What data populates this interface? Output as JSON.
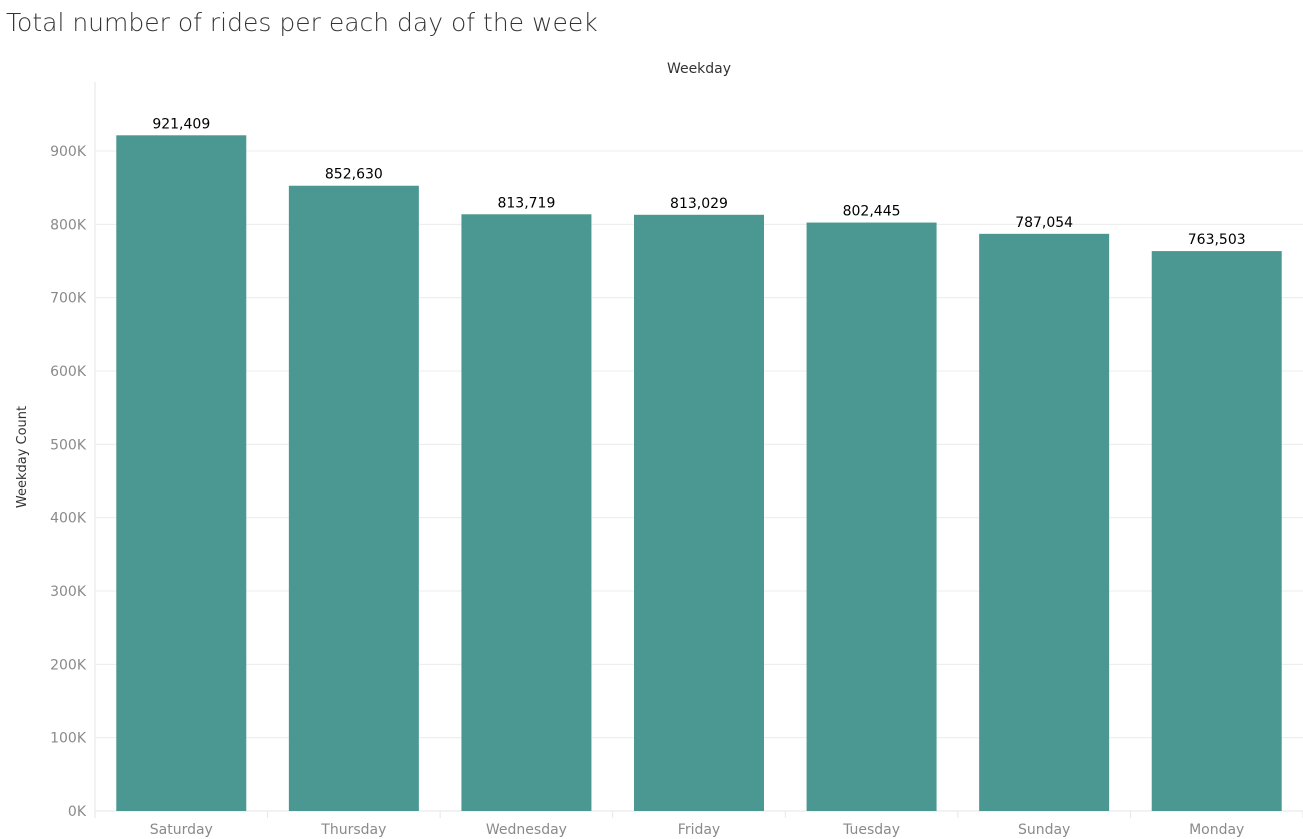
{
  "chart_data": {
    "type": "bar",
    "title": "Total number of rides per each day of the week",
    "column_header": "Weekday",
    "ylabel": "Weekday Count",
    "categories": [
      "Saturday",
      "Thursday",
      "Wednesday",
      "Friday",
      "Tuesday",
      "Sunday",
      "Monday"
    ],
    "values": [
      921409,
      852630,
      813719,
      813029,
      802445,
      787054,
      763503
    ],
    "value_labels": [
      "921,409",
      "852,630",
      "813,719",
      "813,029",
      "802,445",
      "787,054",
      "763,503"
    ],
    "ylim": [
      0,
      920000
    ],
    "yticks": [
      0,
      100000,
      200000,
      300000,
      400000,
      500000,
      600000,
      700000,
      800000,
      900000
    ],
    "ytick_labels": [
      "0K",
      "100K",
      "200K",
      "300K",
      "400K",
      "500K",
      "600K",
      "700K",
      "800K",
      "900K"
    ],
    "bar_color": "#4b9892",
    "grid": true,
    "legend": "none"
  }
}
